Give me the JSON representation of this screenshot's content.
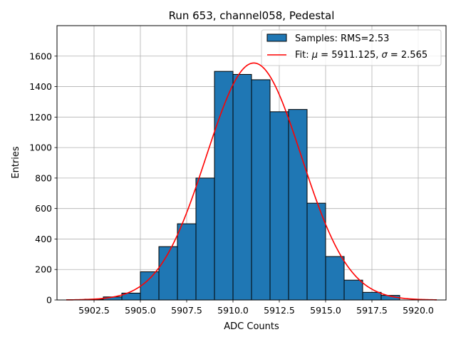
{
  "chart_data": {
    "type": "bar",
    "title": "Run 653, channel058, Pedestal",
    "xlabel": "ADC Counts",
    "ylabel": "Entries",
    "xlim": [
      5900.5,
      5921.5
    ],
    "ylim": [
      0,
      1800
    ],
    "xticks": [
      5902.5,
      5905.0,
      5907.5,
      5910.0,
      5912.5,
      5915.0,
      5917.5,
      5920.0
    ],
    "xtick_labels": [
      "5902.5",
      "5905.0",
      "5907.5",
      "5910.0",
      "5912.5",
      "5915.0",
      "5917.5",
      "5920.0"
    ],
    "yticks": [
      0,
      200,
      400,
      600,
      800,
      1000,
      1200,
      1400,
      1600
    ],
    "ytick_labels": [
      "0",
      "200",
      "400",
      "600",
      "800",
      "1000",
      "1200",
      "1400",
      "1600"
    ],
    "grid": true,
    "legend_position": "top-right",
    "bar_color": "#1f77b4",
    "fit_color": "#ff0000",
    "histogram": {
      "name": "Samples: RMS=2.53",
      "bin_edges": [
        5902,
        5903,
        5904,
        5905,
        5906,
        5907,
        5908,
        5909,
        5910,
        5911,
        5912,
        5913,
        5914,
        5915,
        5916,
        5917,
        5918,
        5919
      ],
      "counts": [
        5,
        20,
        45,
        185,
        350,
        500,
        800,
        1500,
        1480,
        1445,
        1235,
        1250,
        635,
        285,
        130,
        50,
        30
      ]
    },
    "fit": {
      "name": "Fit: μ = 5911.125, σ = 2.565",
      "label_prefix": "Fit: ",
      "mu_symbol": "μ",
      "mu_text": " = 5911.125, ",
      "sigma_symbol": "σ",
      "sigma_text": " = 2.565",
      "mu": 5911.125,
      "sigma": 2.565,
      "amplitude": 1555,
      "x_range": [
        5901,
        5921
      ]
    }
  }
}
